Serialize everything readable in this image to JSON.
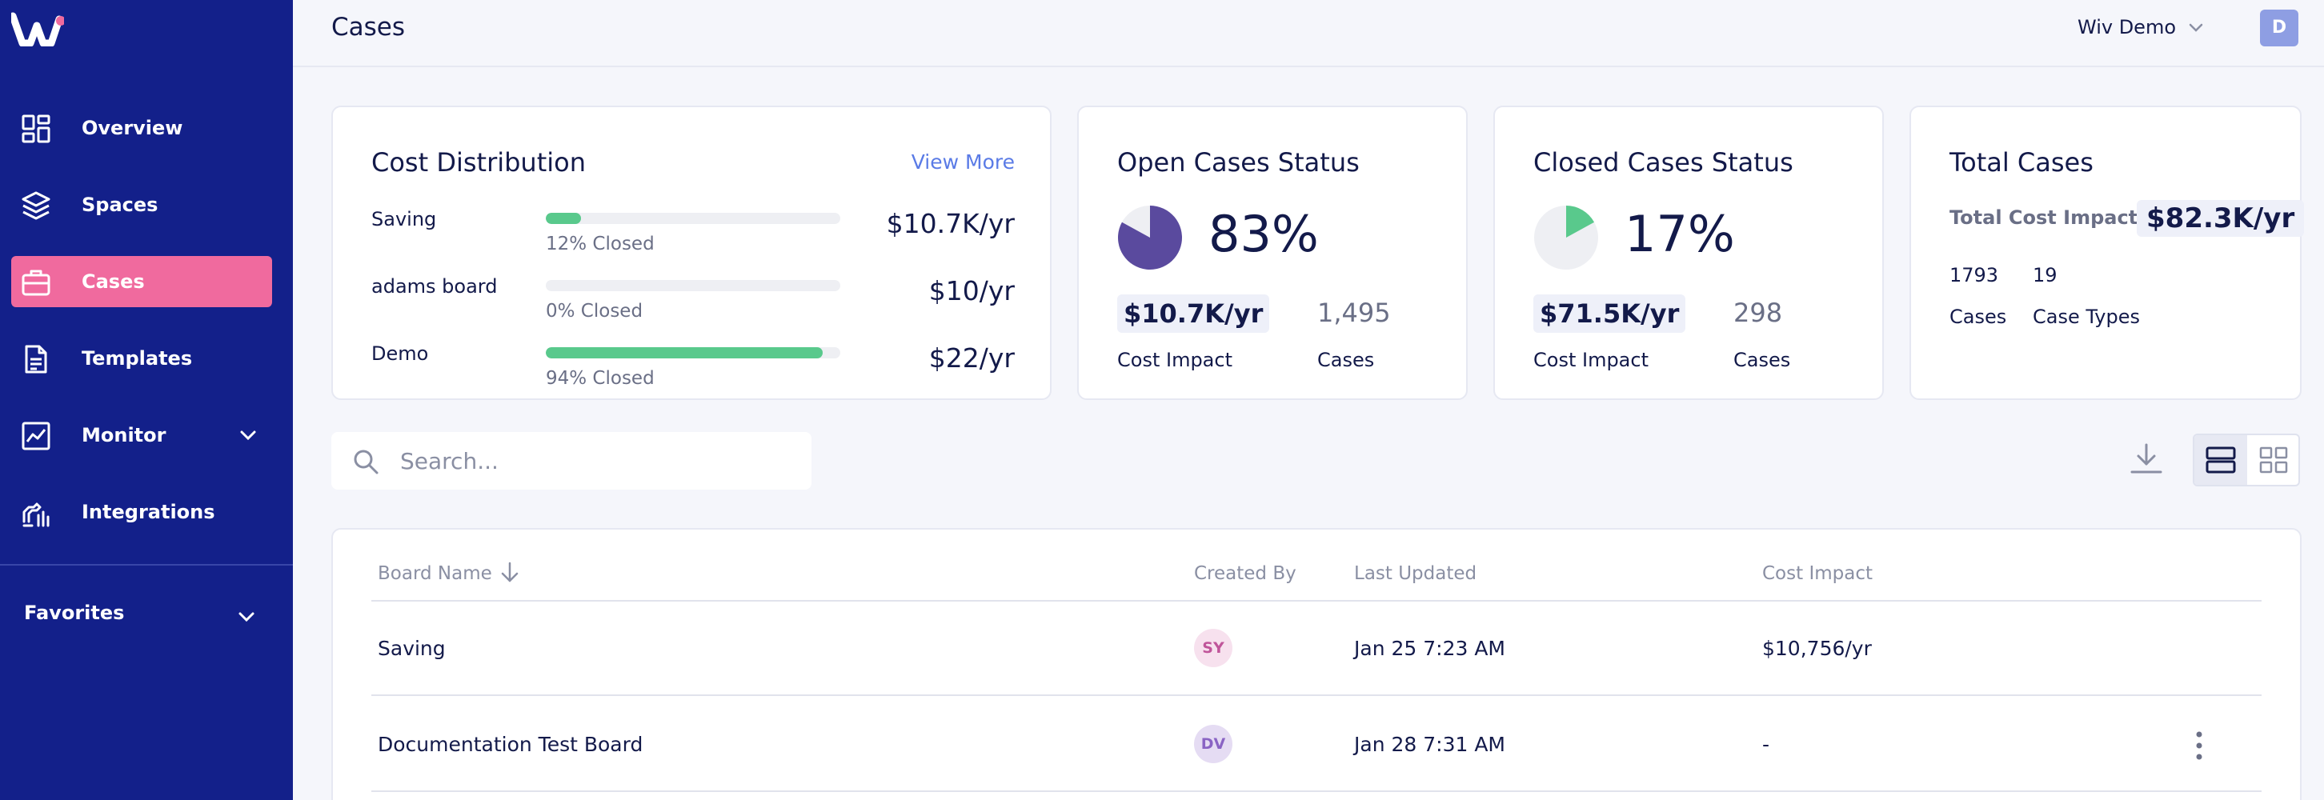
{
  "sidebar": {
    "items": [
      {
        "label": "Overview",
        "icon": "dashboard-icon"
      },
      {
        "label": "Spaces",
        "icon": "layers-icon"
      },
      {
        "label": "Cases",
        "icon": "briefcase-icon",
        "active": true
      },
      {
        "label": "Templates",
        "icon": "document-icon"
      },
      {
        "label": "Monitor",
        "icon": "chart-line-icon",
        "expandable": true
      },
      {
        "label": "Integrations",
        "icon": "integrations-icon"
      }
    ],
    "favorites_label": "Favorites"
  },
  "header": {
    "title": "Cases",
    "account_name": "Wiv Demo",
    "avatar_initial": "D"
  },
  "cost_distribution": {
    "title": "Cost Distribution",
    "view_more": "View More",
    "rows": [
      {
        "name": "Saving",
        "closed_pct": 12,
        "closed_label": "12% Closed",
        "value": "$10.7K/yr"
      },
      {
        "name": "adams board",
        "closed_pct": 0,
        "closed_label": "0% Closed",
        "value": "$10/yr"
      },
      {
        "name": "Demo",
        "closed_pct": 94,
        "closed_label": "94% Closed",
        "value": "$22/yr"
      }
    ]
  },
  "open_cases": {
    "title": "Open Cases Status",
    "percent": "83%",
    "percent_value": 83,
    "cost_impact": "$10.7K/yr",
    "cost_impact_label": "Cost Impact",
    "cases": "1,495",
    "cases_label": "Cases",
    "color": "#5a4a9e"
  },
  "closed_cases": {
    "title": "Closed Cases Status",
    "percent": "17%",
    "percent_value": 17,
    "cost_impact": "$71.5K/yr",
    "cost_impact_label": "Cost Impact",
    "cases": "298",
    "cases_label": "Cases",
    "color": "#59c98c"
  },
  "total_cases": {
    "title": "Total Cases",
    "cost_impact_label": "Total Cost Impact",
    "cost_impact": "$82.3K/yr",
    "cases": "1793",
    "cases_label": "Cases",
    "case_types": "19",
    "case_types_label": "Case Types"
  },
  "search": {
    "placeholder": "Search..."
  },
  "table": {
    "headers": {
      "board_name": "Board Name",
      "created_by": "Created By",
      "last_updated": "Last Updated",
      "cost_impact": "Cost Impact"
    },
    "rows": [
      {
        "board_name": "Saving",
        "created_by": "SY",
        "badge_bg": "#f7e1ee",
        "badge_fg": "#c0559a",
        "last_updated": "Jan 25 7:23 AM",
        "cost_impact": "$10,756/yr"
      },
      {
        "board_name": "Documentation Test Board",
        "created_by": "DV",
        "badge_bg": "#e5dcf3",
        "badge_fg": "#8a64c4",
        "last_updated": "Jan 28 7:31 AM",
        "cost_impact": "-"
      }
    ]
  }
}
